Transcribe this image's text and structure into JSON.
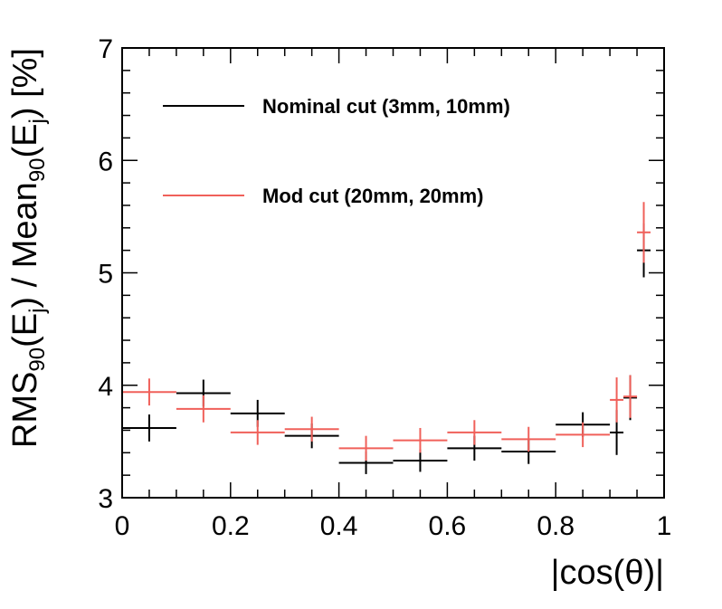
{
  "chart_data": {
    "type": "scatter",
    "xlabel": "|cos(θ)|",
    "ylabel": {
      "parts": [
        {
          "t": "RMS",
          "s": "normal"
        },
        {
          "t": "90",
          "s": "sub"
        },
        {
          "t": "(E",
          "s": "normal"
        },
        {
          "t": "j",
          "s": "sub"
        },
        {
          "t": ") / Mean",
          "s": "normal"
        },
        {
          "t": "90",
          "s": "sub"
        },
        {
          "t": "(E",
          "s": "normal"
        },
        {
          "t": "j",
          "s": "sub"
        },
        {
          "t": ") [%]",
          "s": "normal"
        }
      ]
    },
    "xlim": [
      0,
      1
    ],
    "ylim": [
      3,
      7
    ],
    "x_ticks": [
      "0",
      "0.2",
      "0.4",
      "0.6",
      "0.8",
      "1"
    ],
    "y_ticks": [
      "3",
      "4",
      "5",
      "6",
      "7"
    ],
    "grid": false,
    "legend_position": "top-left",
    "series": [
      {
        "name": "Nominal cut (3mm, 10mm)",
        "color": "#000000",
        "points": [
          {
            "x": 0.05,
            "xerr": 0.05,
            "y": 3.62,
            "yerr": 0.12
          },
          {
            "x": 0.15,
            "xerr": 0.05,
            "y": 3.93,
            "yerr": 0.12
          },
          {
            "x": 0.25,
            "xerr": 0.05,
            "y": 3.75,
            "yerr": 0.12
          },
          {
            "x": 0.35,
            "xerr": 0.05,
            "y": 3.55,
            "yerr": 0.11
          },
          {
            "x": 0.45,
            "xerr": 0.05,
            "y": 3.31,
            "yerr": 0.1
          },
          {
            "x": 0.55,
            "xerr": 0.05,
            "y": 3.33,
            "yerr": 0.1
          },
          {
            "x": 0.65,
            "xerr": 0.05,
            "y": 3.44,
            "yerr": 0.11
          },
          {
            "x": 0.75,
            "xerr": 0.05,
            "y": 3.41,
            "yerr": 0.11
          },
          {
            "x": 0.85,
            "xerr": 0.05,
            "y": 3.65,
            "yerr": 0.11
          },
          {
            "x": 0.9125,
            "xerr": 0.0125,
            "y": 3.58,
            "yerr": 0.2
          },
          {
            "x": 0.9375,
            "xerr": 0.0125,
            "y": 3.89,
            "yerr": 0.2
          },
          {
            "x": 0.9625,
            "xerr": 0.0125,
            "y": 5.2,
            "yerr": 0.24
          }
        ]
      },
      {
        "name": "Mod cut (20mm, 20mm)",
        "color": "#f0605a",
        "points": [
          {
            "x": 0.05,
            "xerr": 0.05,
            "y": 3.94,
            "yerr": 0.12
          },
          {
            "x": 0.15,
            "xerr": 0.05,
            "y": 3.79,
            "yerr": 0.12
          },
          {
            "x": 0.25,
            "xerr": 0.05,
            "y": 3.58,
            "yerr": 0.11
          },
          {
            "x": 0.35,
            "xerr": 0.05,
            "y": 3.61,
            "yerr": 0.11
          },
          {
            "x": 0.45,
            "xerr": 0.05,
            "y": 3.44,
            "yerr": 0.11
          },
          {
            "x": 0.55,
            "xerr": 0.05,
            "y": 3.51,
            "yerr": 0.11
          },
          {
            "x": 0.65,
            "xerr": 0.05,
            "y": 3.58,
            "yerr": 0.11
          },
          {
            "x": 0.75,
            "xerr": 0.05,
            "y": 3.52,
            "yerr": 0.11
          },
          {
            "x": 0.85,
            "xerr": 0.05,
            "y": 3.56,
            "yerr": 0.11
          },
          {
            "x": 0.9125,
            "xerr": 0.0125,
            "y": 3.87,
            "yerr": 0.2
          },
          {
            "x": 0.9375,
            "xerr": 0.0125,
            "y": 3.9,
            "yerr": 0.19
          },
          {
            "x": 0.9625,
            "xerr": 0.0125,
            "y": 5.36,
            "yerr": 0.27
          }
        ]
      }
    ]
  }
}
